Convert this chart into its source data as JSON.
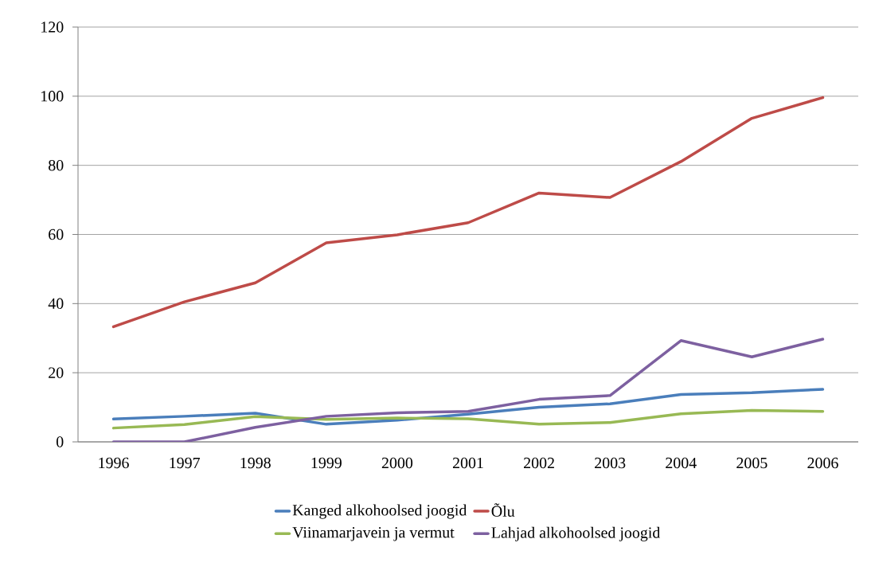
{
  "chart_data": {
    "type": "line",
    "categories": [
      "1996",
      "1997",
      "1998",
      "1999",
      "2000",
      "2001",
      "2002",
      "2003",
      "2004",
      "2005",
      "2006"
    ],
    "series": [
      {
        "name": "Kanged alkohoolsed joogid",
        "color": "#4a7ebb",
        "values": [
          6.6,
          7.4,
          8.3,
          5.1,
          6.3,
          8.0,
          10.0,
          11.0,
          13.7,
          14.2,
          15.2
        ]
      },
      {
        "name": "Õlu",
        "color": "#be4b48",
        "values": [
          33.3,
          40.5,
          46.0,
          57.6,
          59.9,
          63.4,
          72.0,
          70.7,
          81.1,
          93.6,
          99.6
        ]
      },
      {
        "name": "Viinamarjavein ja vermut",
        "color": "#98b954",
        "values": [
          4.0,
          5.0,
          7.3,
          6.5,
          6.9,
          6.7,
          5.1,
          5.6,
          8.1,
          9.1,
          8.8
        ]
      },
      {
        "name": "Lahjad alkohoolsed joogid",
        "color": "#7d60a0",
        "values": [
          0,
          0,
          4.2,
          7.4,
          8.4,
          8.8,
          12.3,
          13.4,
          29.3,
          24.6,
          29.7
        ]
      }
    ],
    "ylim": [
      0,
      120
    ],
    "yticks": [
      0,
      20,
      40,
      60,
      80,
      100,
      120
    ],
    "grid": "y",
    "legend": "bottom",
    "marker": "none",
    "line_style": "solid"
  }
}
